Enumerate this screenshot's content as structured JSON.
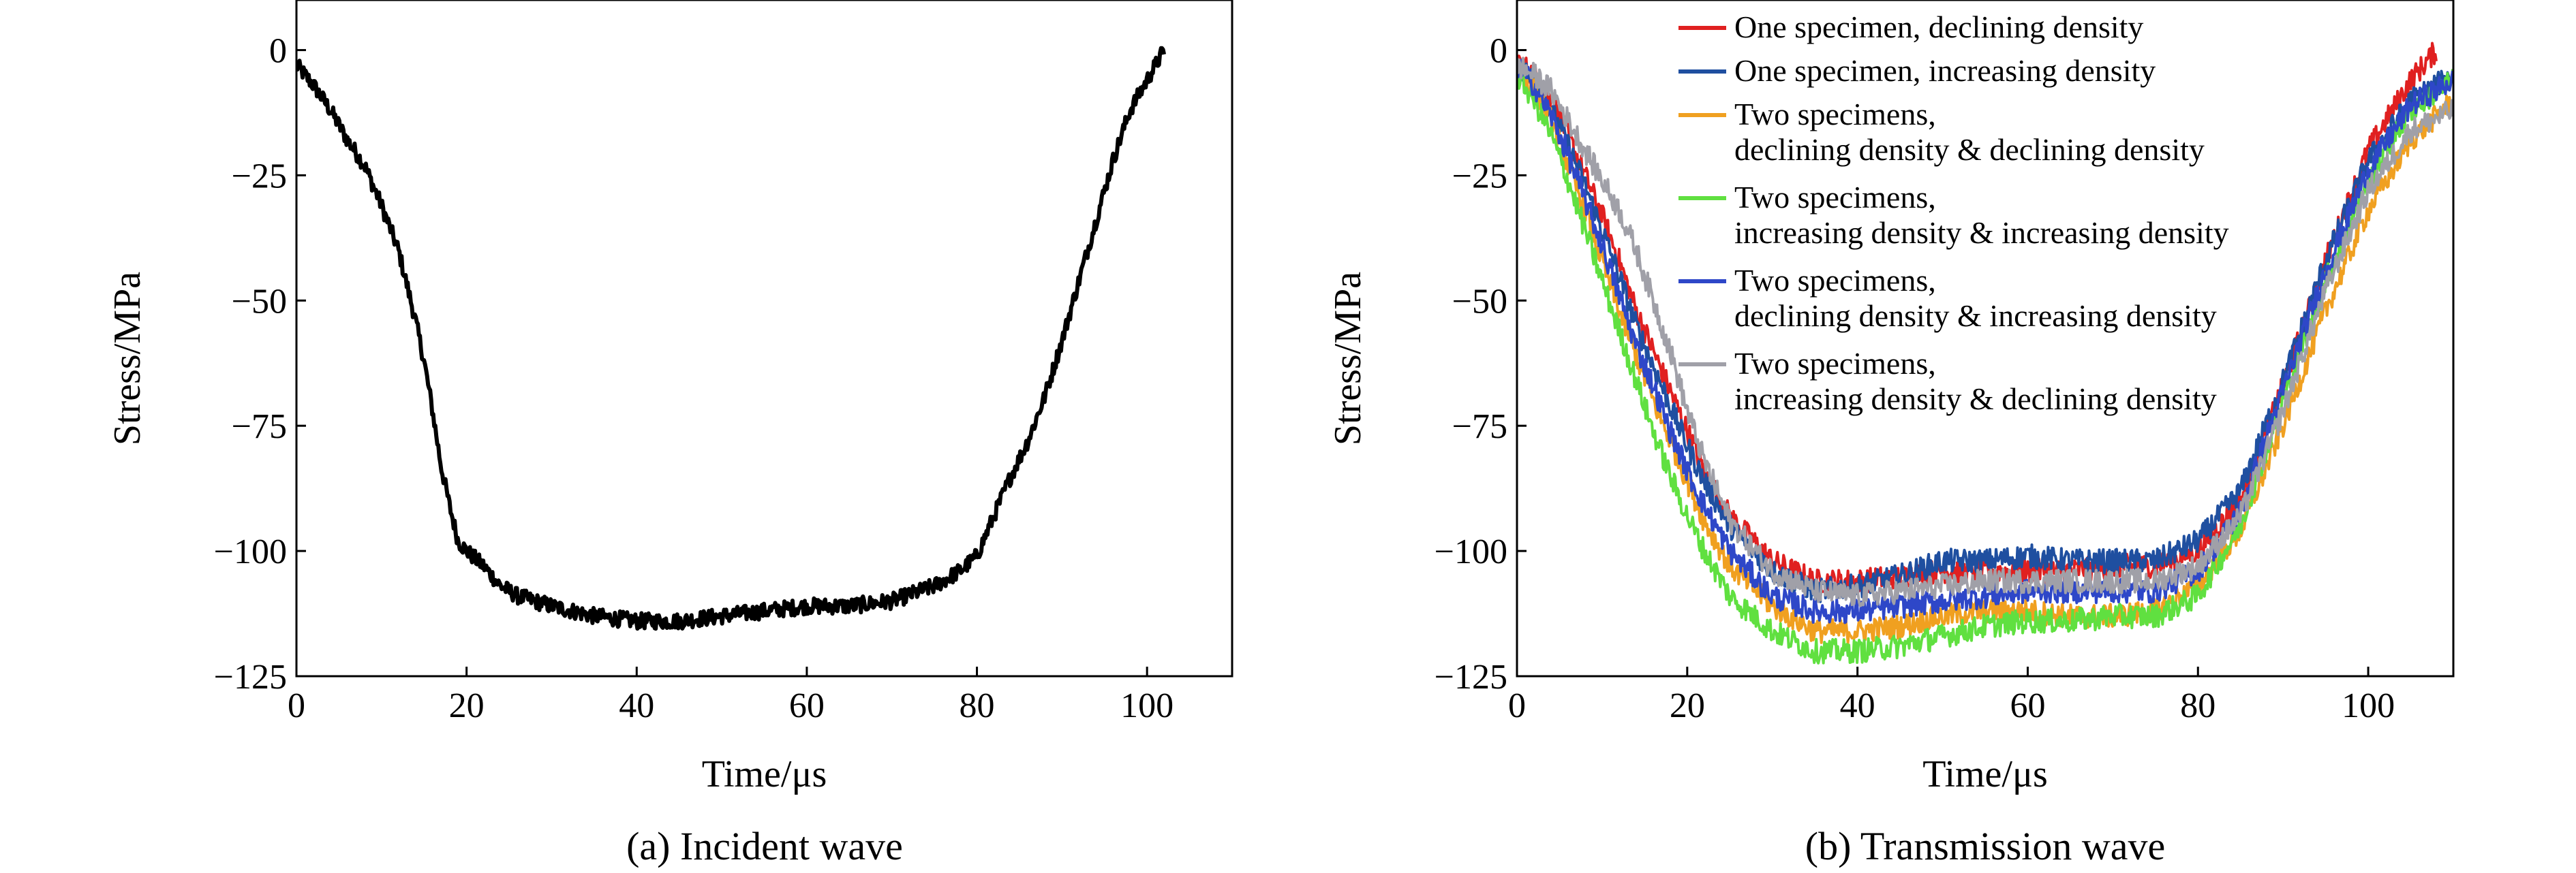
{
  "chart_data": [
    {
      "type": "line",
      "caption": "(a) Incident wave",
      "xlabel": "Time/μs",
      "ylabel": "Stress/MPa",
      "xlim": [
        0,
        110
      ],
      "ylim": [
        -125,
        10
      ],
      "xticks": [
        0,
        20,
        40,
        60,
        80,
        100
      ],
      "yticks": [
        0,
        -25,
        -50,
        -75,
        -100,
        -125
      ],
      "ytick_labels": [
        "0",
        "−25",
        "−50",
        "−75",
        "−100",
        "−125"
      ],
      "grid": false,
      "legend": "none",
      "series": [
        {
          "color": "#000000",
          "x": [
            0,
            2,
            4,
            6,
            8,
            10,
            12,
            14,
            15,
            16,
            17,
            18,
            19,
            20,
            22,
            24,
            26,
            30,
            35,
            40,
            45,
            50,
            55,
            60,
            65,
            70,
            75,
            78,
            80,
            82,
            84,
            86,
            88,
            90,
            92,
            94,
            96,
            98,
            100,
            102
          ],
          "y": [
            -3,
            -7,
            -12,
            -18,
            -23,
            -31,
            -40,
            -54,
            -62,
            -72,
            -83,
            -91,
            -98,
            -100,
            -103,
            -107,
            -109,
            -111,
            -113,
            -114,
            -114,
            -113,
            -112,
            -111,
            -111,
            -110,
            -107,
            -104,
            -101,
            -93,
            -85,
            -78,
            -69,
            -58,
            -46,
            -34,
            -22,
            -12,
            -6,
            0
          ]
        }
      ]
    },
    {
      "type": "line",
      "caption": "(b) Transmission wave",
      "xlabel": "Time/μs",
      "ylabel": "Stress/MPa",
      "xlim": [
        0,
        110
      ],
      "ylim": [
        -125,
        10
      ],
      "xticks": [
        0,
        20,
        40,
        60,
        80,
        100
      ],
      "yticks": [
        0,
        -25,
        -50,
        -75,
        -100,
        -125
      ],
      "ytick_labels": [
        "0",
        "−25",
        "−50",
        "−75",
        "−100",
        "−125"
      ],
      "grid": false,
      "legend": "top-right",
      "series": [
        {
          "name": "One specimen, declining density",
          "color": "#e02020",
          "x": [
            0,
            2,
            4,
            6,
            8,
            10,
            12,
            14,
            16,
            18,
            20,
            22,
            25,
            30,
            35,
            40,
            45,
            50,
            55,
            60,
            65,
            70,
            75,
            80,
            85,
            90,
            95,
            100,
            105,
            108
          ],
          "y": [
            -2,
            -5,
            -10,
            -17,
            -25,
            -33,
            -42,
            -52,
            -60,
            -68,
            -76,
            -84,
            -93,
            -102,
            -106,
            -106,
            -105,
            -104,
            -104,
            -104,
            -104,
            -103,
            -103,
            -100,
            -90,
            -67,
            -42,
            -20,
            -6,
            0
          ]
        },
        {
          "name": "One specimen, increasing density",
          "color": "#1f4fa0",
          "x": [
            0,
            2,
            4,
            6,
            8,
            10,
            12,
            14,
            16,
            18,
            20,
            22,
            25,
            30,
            35,
            40,
            45,
            50,
            55,
            60,
            65,
            70,
            75,
            80,
            85,
            90,
            95,
            100,
            105,
            110
          ],
          "y": [
            -3,
            -6,
            -12,
            -19,
            -27,
            -36,
            -45,
            -55,
            -63,
            -71,
            -79,
            -86,
            -95,
            -104,
            -108,
            -107,
            -105,
            -102,
            -102,
            -101,
            -102,
            -102,
            -102,
            -98,
            -88,
            -66,
            -42,
            -22,
            -10,
            -5
          ]
        },
        {
          "name": "Two specimens,\ndeclining density & declining density",
          "color": "#f0a020",
          "x": [
            0,
            2,
            4,
            6,
            8,
            10,
            12,
            14,
            16,
            18,
            20,
            22,
            25,
            30,
            35,
            40,
            45,
            50,
            55,
            60,
            65,
            70,
            75,
            80,
            85,
            90,
            95,
            100,
            105,
            110
          ],
          "y": [
            -4,
            -8,
            -14,
            -23,
            -32,
            -42,
            -52,
            -61,
            -70,
            -78,
            -86,
            -94,
            -103,
            -111,
            -116,
            -116,
            -115,
            -113,
            -112,
            -112,
            -113,
            -113,
            -112,
            -107,
            -96,
            -75,
            -52,
            -32,
            -18,
            -10
          ]
        },
        {
          "name": "Two specimens,\nincreasing density & increasing density",
          "color": "#60e040",
          "x": [
            0,
            2,
            4,
            6,
            8,
            10,
            12,
            14,
            16,
            18,
            20,
            22,
            25,
            30,
            35,
            40,
            45,
            50,
            55,
            60,
            65,
            70,
            75,
            80,
            85,
            90,
            95,
            100,
            105,
            110
          ],
          "y": [
            -5,
            -10,
            -17,
            -26,
            -36,
            -46,
            -56,
            -66,
            -76,
            -85,
            -93,
            -100,
            -109,
            -116,
            -120,
            -120,
            -119,
            -117,
            -115,
            -114,
            -114,
            -113,
            -113,
            -109,
            -95,
            -70,
            -46,
            -26,
            -12,
            -6
          ]
        },
        {
          "name": "Two specimens,\ndeclining density & increasing density",
          "color": "#2e47c8",
          "x": [
            0,
            2,
            4,
            6,
            8,
            10,
            12,
            14,
            16,
            18,
            20,
            22,
            25,
            30,
            35,
            40,
            45,
            50,
            55,
            60,
            65,
            70,
            75,
            80,
            85,
            90,
            95,
            100,
            105,
            110
          ],
          "y": [
            -3,
            -7,
            -13,
            -21,
            -30,
            -39,
            -49,
            -59,
            -67,
            -76,
            -84,
            -91,
            -100,
            -109,
            -112,
            -112,
            -111,
            -110,
            -109,
            -108,
            -108,
            -108,
            -108,
            -104,
            -92,
            -68,
            -44,
            -24,
            -11,
            -6
          ]
        },
        {
          "name": "Two specimens,\nincreasing density & declining density",
          "color": "#a0a0a8",
          "x": [
            0,
            2,
            4,
            6,
            8,
            10,
            12,
            14,
            16,
            18,
            20,
            22,
            25,
            30,
            35,
            40,
            45,
            50,
            55,
            60,
            65,
            70,
            75,
            80,
            85,
            90,
            95,
            100,
            105,
            110
          ],
          "y": [
            -3,
            -5,
            -8,
            -14,
            -20,
            -26,
            -32,
            -40,
            -50,
            -60,
            -72,
            -82,
            -94,
            -104,
            -108,
            -109,
            -108,
            -107,
            -106,
            -106,
            -106,
            -106,
            -106,
            -103,
            -93,
            -72,
            -48,
            -28,
            -16,
            -12
          ]
        }
      ]
    }
  ]
}
